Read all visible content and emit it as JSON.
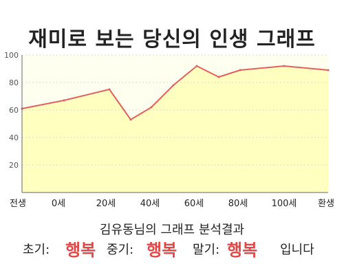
{
  "chart_data": {
    "type": "area",
    "title": "재미로 보는 당신의 인생 그래프",
    "subtitle": "김유동님의 그래프 분석결과",
    "y_ticks": [
      20,
      40,
      60,
      80,
      100
    ],
    "ylim": [
      0,
      100
    ],
    "x_tick_labels": [
      "전생",
      "0세",
      "20세",
      "40세",
      "60세",
      "80세",
      "100세",
      "환생"
    ],
    "series": [
      {
        "x": [
          "전생",
          "0세",
          "20세",
          "30세",
          "40세",
          "50세",
          "60세",
          "70세",
          "80세",
          "100세",
          "환생"
        ],
        "values": [
          61,
          67,
          75,
          53,
          62,
          78,
          92,
          84,
          89,
          92,
          89
        ]
      }
    ],
    "colors": {
      "line": "#e06060",
      "fill": "#ffffc0",
      "plot_bg": "#fffff0"
    }
  },
  "result": {
    "early_label": "초기:",
    "early_value": "행복",
    "mid_label": "중기:",
    "mid_value": "행복",
    "late_label": "말기:",
    "late_value": "행복",
    "ending": "입니다"
  }
}
